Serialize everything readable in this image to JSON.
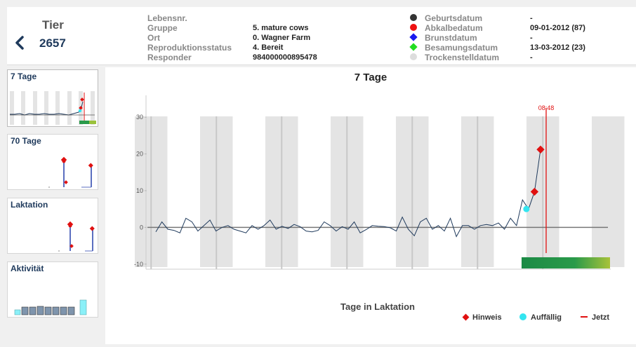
{
  "header": {
    "title": "Tier",
    "animal_number": "2657",
    "info": [
      {
        "label": "Lebensnr.",
        "value": ""
      },
      {
        "label": "Gruppe",
        "value": "5. mature cows"
      },
      {
        "label": "Ort",
        "value": "0. Wagner Farm"
      },
      {
        "label": "Reproduktionsstatus",
        "value": "4. Bereit"
      },
      {
        "label": "Responder",
        "value": "984000000895478"
      }
    ],
    "dates": [
      {
        "label": "Geburtsdatum",
        "value": "-",
        "marker": "circle",
        "color": "#333333"
      },
      {
        "label": "Abkalbedatum",
        "value": "09-01-2012 (87)",
        "marker": "circle",
        "color": "#ee1111"
      },
      {
        "label": "Brunstdatum",
        "value": "-",
        "marker": "diamond",
        "color": "#1a1aee"
      },
      {
        "label": "Besamungsdatum",
        "value": "13-03-2012 (23)",
        "marker": "diamond",
        "color": "#22dd22"
      },
      {
        "label": "Trockenstelldatum",
        "value": "-",
        "marker": "circle",
        "color": "#dddddd"
      }
    ]
  },
  "sidebar": {
    "cards": [
      {
        "label": "7 Tage",
        "active": true
      },
      {
        "label": "70 Tage",
        "active": false
      },
      {
        "label": "Laktation",
        "active": false
      },
      {
        "label": "Aktivität",
        "active": false
      }
    ]
  },
  "main": {
    "x_axis_title": "Tage in Laktation",
    "now_label": "08:48",
    "legend": [
      {
        "label": "Hinweis",
        "marker": "diamond",
        "color": "#e01010"
      },
      {
        "label": "Auffällig",
        "marker": "circle",
        "color": "#33e5f0"
      },
      {
        "label": "Jetzt",
        "marker": "line",
        "color": "#e01010"
      }
    ]
  },
  "chart_data": {
    "type": "line",
    "title": "7 Tage",
    "xlabel": "Tage in Laktation",
    "ylabel": "",
    "ylim": [
      -11,
      35
    ],
    "yticks": [
      -10,
      0,
      10,
      20,
      30
    ],
    "series": [
      {
        "values": [
          -1.2,
          1.5,
          -0.5,
          -0.8,
          -1.5,
          2.5,
          1.5,
          -1,
          0.5,
          2,
          -1,
          0,
          0.5,
          -0.5,
          -1,
          -1.5,
          0.5,
          -0.5,
          0.5,
          2,
          -0.5,
          0.3,
          -0.3,
          0.8,
          0.2,
          -1,
          -1.2,
          -0.8,
          1.5,
          0.5,
          -1,
          0.2,
          -0.5,
          1.5,
          -1.5,
          -0.6,
          0.5,
          0.3,
          0.2,
          -0.1,
          -1,
          2.8,
          -0.5,
          -2.3,
          1.5,
          2.5,
          -0.5,
          0.5,
          -1,
          2.5,
          -2.5,
          0.5,
          0.5,
          -0.5,
          0.5,
          0.8,
          0.5,
          1.2,
          -0.5,
          2.5,
          0.5,
          7.5,
          5,
          9.7,
          21.2
        ]
      }
    ],
    "hinweis_points": [
      9.7,
      21.2
    ],
    "auffaellig_points": [
      5
    ]
  }
}
